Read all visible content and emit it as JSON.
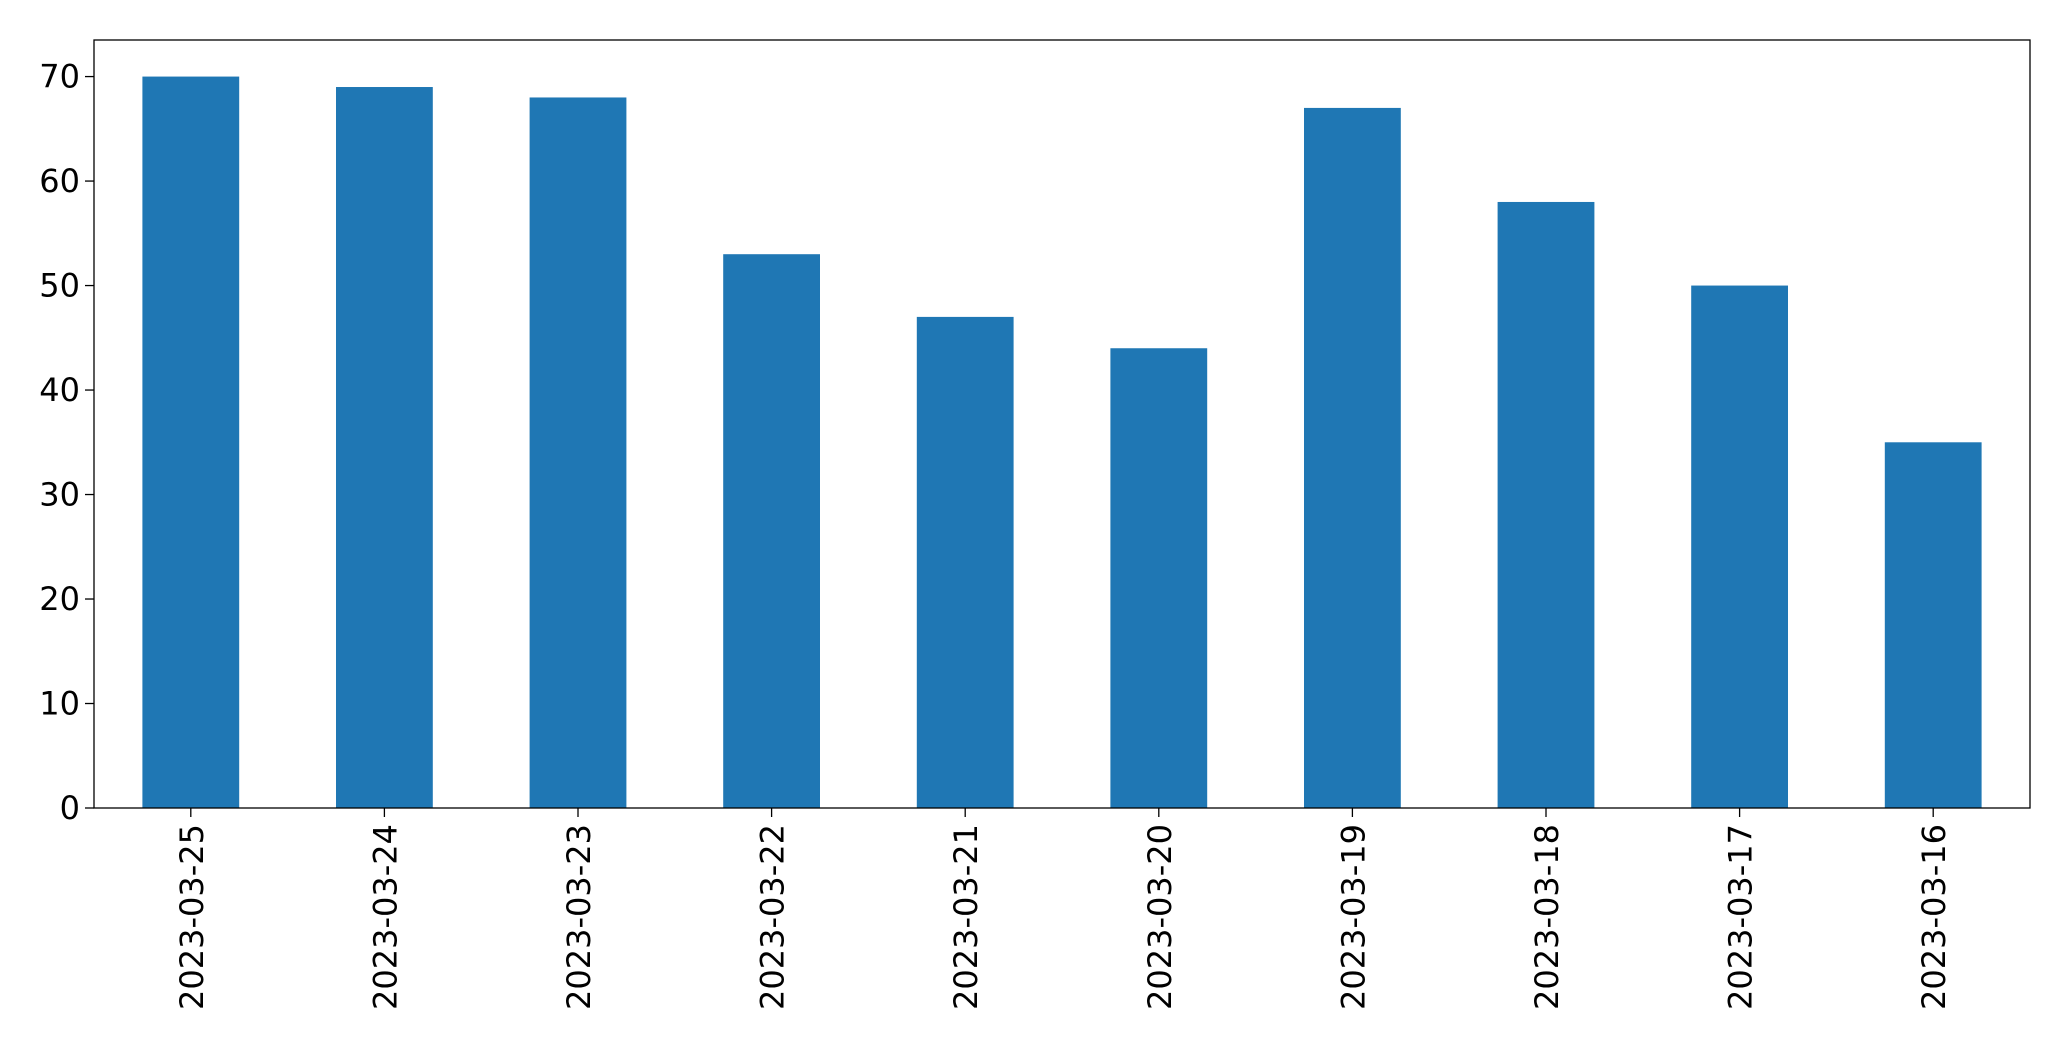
{
  "chart_data": {
    "type": "bar",
    "categories": [
      "2023-03-25",
      "2023-03-24",
      "2023-03-23",
      "2023-03-22",
      "2023-03-21",
      "2023-03-20",
      "2023-03-19",
      "2023-03-18",
      "2023-03-17",
      "2023-03-16"
    ],
    "values": [
      70,
      69,
      68,
      53,
      47,
      44,
      67,
      58,
      50,
      35
    ],
    "color": "#1f77b4",
    "ylim": [
      0,
      73.5
    ],
    "yticks": [
      0,
      10,
      20,
      30,
      40,
      50,
      60,
      70
    ],
    "grid": false
  }
}
